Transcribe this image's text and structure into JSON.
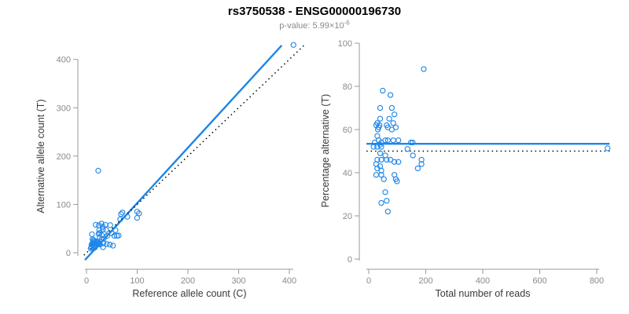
{
  "header": {
    "title": "rs3750538 - ENSG00000196730",
    "subtitle_prefix": "p-value: ",
    "subtitle_base": "5.99×10",
    "subtitle_exponent": "-6"
  },
  "colors": {
    "accent": "#1E86E8",
    "identity": "#000000",
    "axis_line": "#9a9a9a",
    "tick_text": "#8a8a8a",
    "axis_title_text": "#3a3a3a"
  },
  "chart_data": [
    {
      "type": "scatter",
      "name": "allele-counts-scatter",
      "xlabel": "Reference allele count (C)",
      "ylabel": "Alternative allele count (T)",
      "xlim": [
        0,
        430
      ],
      "ylim": [
        0,
        445
      ],
      "xticks": [
        0,
        100,
        200,
        300,
        400
      ],
      "yticks": [
        0,
        100,
        200,
        300,
        400
      ],
      "grid": false,
      "marker": "open-circle",
      "points": [
        [
          10.8,
          38.2
        ],
        [
          18.2,
          57.8
        ],
        [
          12,
          28
        ],
        [
          24.3,
          56.7
        ],
        [
          29.7,
          60.3
        ],
        [
          25.2,
          46.8
        ],
        [
          14,
          26
        ],
        [
          11.1,
          18.9
        ],
        [
          9.9,
          16.1
        ],
        [
          23.9,
          39.1
        ],
        [
          31.8,
          54.2
        ],
        [
          26.1,
          40.9
        ],
        [
          32.4,
          48.6
        ],
        [
          37.1,
          57.9
        ],
        [
          13.7,
          21.3
        ],
        [
          12.8,
          19.2
        ],
        [
          14.4,
          23.6
        ],
        [
          12.9,
          17.1
        ],
        [
          9.7,
          11.3
        ],
        [
          15.8,
          19.2
        ],
        [
          20.2,
          23.8
        ],
        [
          26.1,
          31.9
        ],
        [
          30.2,
          36.9
        ],
        [
          38.7,
          47.3
        ],
        [
          46.8,
          57.2
        ],
        [
          68.1,
          79.9
        ],
        [
          70.8,
          83.2
        ],
        [
          8.2,
          8.8
        ],
        [
          18.8,
          21.2
        ],
        [
          14.4,
          15.6
        ],
        [
          21.1,
          22.9
        ],
        [
          66.6,
          69.4
        ],
        [
          20.4,
          19.6
        ],
        [
          30.2,
          27.8
        ],
        [
          16.2,
          13.8
        ],
        [
          23.8,
          20.2
        ],
        [
          34,
          29
        ],
        [
          41,
          35
        ],
        [
          49.5,
          40.5
        ],
        [
          57.2,
          46.8
        ],
        [
          99.9,
          85.1
        ],
        [
          103.6,
          81.4
        ],
        [
          14.6,
          11.4
        ],
        [
          22.8,
          17.2
        ],
        [
          17.4,
          12.6
        ],
        [
          26,
          18
        ],
        [
          15.9,
          10.1
        ],
        [
          26.8,
          17.2
        ],
        [
          33.4,
          19.6
        ],
        [
          54.9,
          35.1
        ],
        [
          59.9,
          35.2
        ],
        [
          63.4,
          35.6
        ],
        [
          40,
          18
        ],
        [
          32.6,
          11.4
        ],
        [
          46,
          17
        ],
        [
          52.3,
          14.7
        ],
        [
          23.2,
          169.8
        ],
        [
          408.1,
          429.9
        ],
        [
          80.6,
          74.4
        ],
        [
          99.8,
          72.2
        ]
      ],
      "lines": [
        {
          "name": "fit-line",
          "style": "solid",
          "color": "accent",
          "width": 2.4,
          "coords": [
            [
              -3,
              -15
            ],
            [
              385,
              429
            ]
          ],
          "slope": 1.145,
          "intercept": -11.5
        },
        {
          "name": "identity-line",
          "style": "dotted",
          "color": "identity",
          "width": 1.5,
          "coords": [
            [
              -5,
              -5
            ],
            [
              431,
              431
            ]
          ]
        }
      ]
    },
    {
      "type": "scatter",
      "name": "percentage-vs-reads-scatter",
      "xlabel": "Total number of reads",
      "ylabel": "Percentage alternative (T)",
      "xlim": [
        0,
        860
      ],
      "ylim": [
        0,
        100
      ],
      "xticks": [
        0,
        200,
        400,
        600,
        800
      ],
      "yticks": [
        0,
        20,
        40,
        60,
        80,
        100
      ],
      "grid": false,
      "marker": "open-circle",
      "points": [
        [
          49,
          78
        ],
        [
          76,
          76
        ],
        [
          40,
          70
        ],
        [
          81,
          70
        ],
        [
          90,
          67
        ],
        [
          72,
          65
        ],
        [
          40,
          65
        ],
        [
          30,
          63
        ],
        [
          26,
          62
        ],
        [
          63,
          62
        ],
        [
          86,
          63
        ],
        [
          67,
          61
        ],
        [
          81,
          60
        ],
        [
          95,
          61
        ],
        [
          35,
          61
        ],
        [
          32,
          60
        ],
        [
          38,
          62
        ],
        [
          30,
          57
        ],
        [
          21,
          54
        ],
        [
          35,
          55
        ],
        [
          44,
          54
        ],
        [
          58,
          55
        ],
        [
          67,
          55
        ],
        [
          86,
          55
        ],
        [
          104,
          55
        ],
        [
          148,
          54
        ],
        [
          154,
          54
        ],
        [
          17,
          52
        ],
        [
          40,
          53
        ],
        [
          30,
          52
        ],
        [
          44,
          52
        ],
        [
          136,
          51
        ],
        [
          40,
          49
        ],
        [
          58,
          48
        ],
        [
          30,
          46
        ],
        [
          44,
          46
        ],
        [
          63,
          46
        ],
        [
          76,
          46
        ],
        [
          90,
          45
        ],
        [
          104,
          45
        ],
        [
          185,
          46
        ],
        [
          185,
          44
        ],
        [
          26,
          44
        ],
        [
          40,
          43
        ],
        [
          30,
          42
        ],
        [
          44,
          41
        ],
        [
          26,
          39
        ],
        [
          44,
          39
        ],
        [
          53,
          37
        ],
        [
          90,
          39
        ],
        [
          95,
          37
        ],
        [
          99,
          36
        ],
        [
          58,
          31
        ],
        [
          44,
          26
        ],
        [
          63,
          27
        ],
        [
          67,
          22
        ],
        [
          193,
          88
        ],
        [
          838,
          51.3
        ],
        [
          155,
          48
        ],
        [
          172,
          42
        ]
      ],
      "lines": [
        {
          "name": "mean-percentage-line",
          "style": "solid",
          "color": "accent",
          "width": 2.4,
          "coords": [
            [
              -8,
              53.4
            ],
            [
              845,
              53.4
            ]
          ],
          "value": 53.4
        },
        {
          "name": "expected-50pct-line",
          "style": "dotted",
          "color": "identity",
          "width": 1.5,
          "coords": [
            [
              -8,
              50
            ],
            [
              845,
              50
            ]
          ],
          "value": 50
        }
      ]
    }
  ]
}
